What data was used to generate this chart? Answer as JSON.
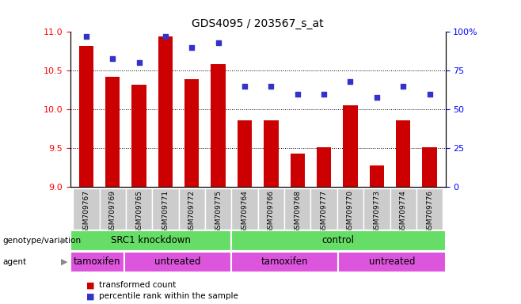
{
  "title": "GDS4095 / 203567_s_at",
  "samples": [
    "GSM709767",
    "GSM709769",
    "GSM709765",
    "GSM709771",
    "GSM709772",
    "GSM709775",
    "GSM709764",
    "GSM709766",
    "GSM709768",
    "GSM709777",
    "GSM709770",
    "GSM709773",
    "GSM709774",
    "GSM709776"
  ],
  "transformed_count": [
    10.82,
    10.42,
    10.32,
    10.94,
    10.39,
    10.58,
    9.86,
    9.86,
    9.43,
    9.51,
    10.05,
    9.28,
    9.86,
    9.51
  ],
  "percentile_rank": [
    97,
    83,
    80,
    97,
    90,
    93,
    65,
    65,
    60,
    60,
    68,
    58,
    65,
    60
  ],
  "ylim_left": [
    9,
    11
  ],
  "ylim_right": [
    0,
    100
  ],
  "yticks_left": [
    9,
    9.5,
    10,
    10.5,
    11
  ],
  "yticks_right": [
    0,
    25,
    50,
    75,
    100
  ],
  "bar_color": "#cc0000",
  "dot_color": "#3333cc",
  "genotype_groups": [
    {
      "label": "SRC1 knockdown",
      "start": 0,
      "end": 6
    },
    {
      "label": "control",
      "start": 6,
      "end": 14
    }
  ],
  "genotype_color": "#66dd66",
  "agent_groups": [
    {
      "label": "tamoxifen",
      "start": 0,
      "end": 2
    },
    {
      "label": "untreated",
      "start": 2,
      "end": 6
    },
    {
      "label": "tamoxifen",
      "start": 6,
      "end": 10
    },
    {
      "label": "untreated",
      "start": 10,
      "end": 14
    }
  ],
  "agent_color": "#dd55dd",
  "legend_items": [
    {
      "label": "transformed count",
      "color": "#cc0000"
    },
    {
      "label": "percentile rank within the sample",
      "color": "#3333cc"
    }
  ]
}
